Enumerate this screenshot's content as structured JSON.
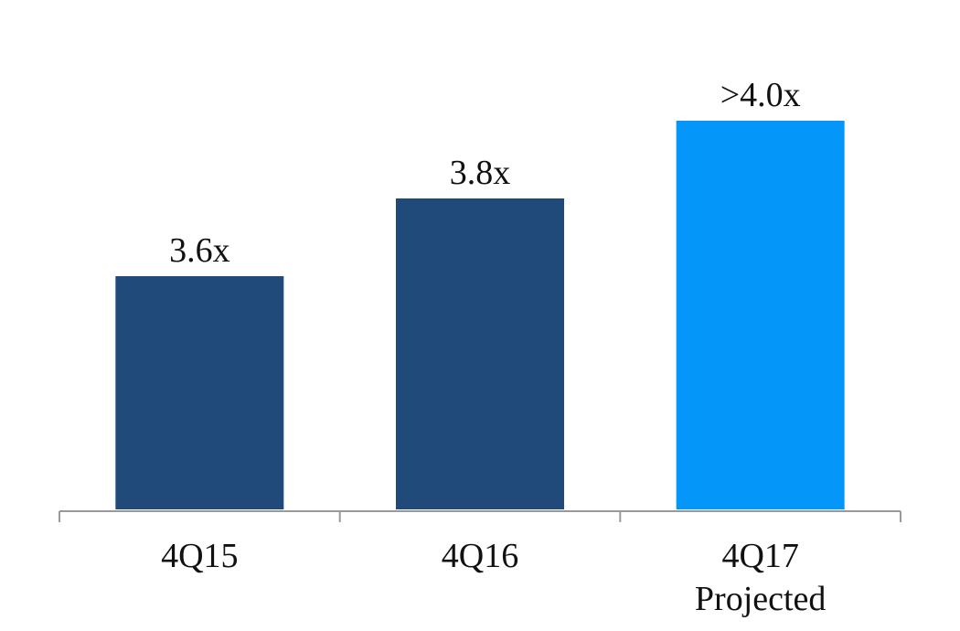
{
  "chart_data": {
    "type": "bar",
    "categories": [
      "4Q15",
      "4Q16",
      "4Q17"
    ],
    "category_notes": [
      null,
      null,
      "Projected"
    ],
    "values": [
      3.6,
      3.8,
      4.0
    ],
    "value_labels": [
      "3.6x",
      "3.8x",
      ">4.0x"
    ],
    "colors": [
      "#204a7a",
      "#204a7a",
      "#0496f8"
    ],
    "ylim": [
      3.0,
      4.2
    ]
  }
}
